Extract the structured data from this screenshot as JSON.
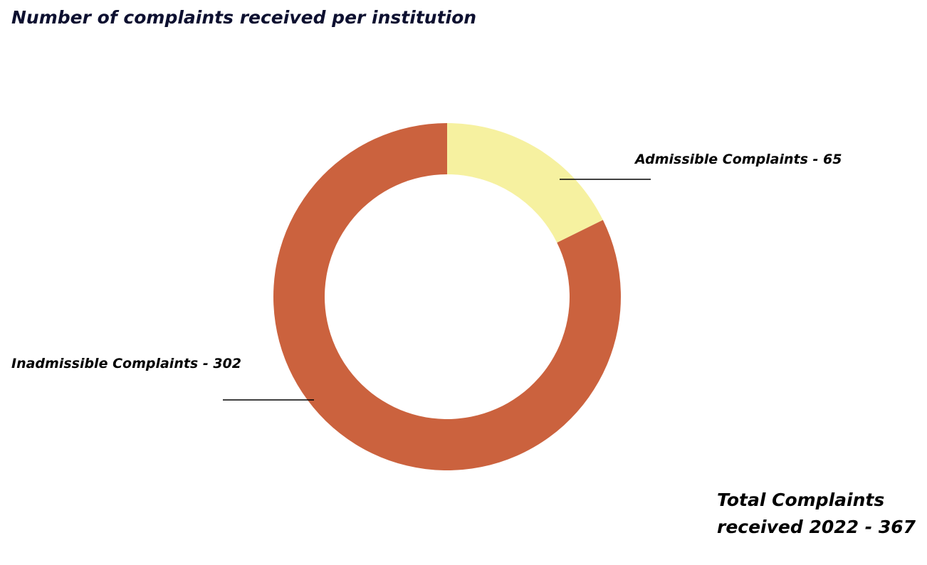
{
  "chart_data": {
    "type": "pie",
    "title": "Number of complaints received per institution",
    "slices": [
      {
        "label": "Admissible Complaints - 65",
        "value": 65,
        "color": "#f6f1a0"
      },
      {
        "label": "Inadmissible Complaints - 302",
        "value": 302,
        "color": "#cb623e"
      }
    ],
    "donut": true,
    "start_angle_deg": 0,
    "direction": "clockwise"
  },
  "total": {
    "line1": "Total Complaints",
    "line2": "received 2022 - 367"
  }
}
